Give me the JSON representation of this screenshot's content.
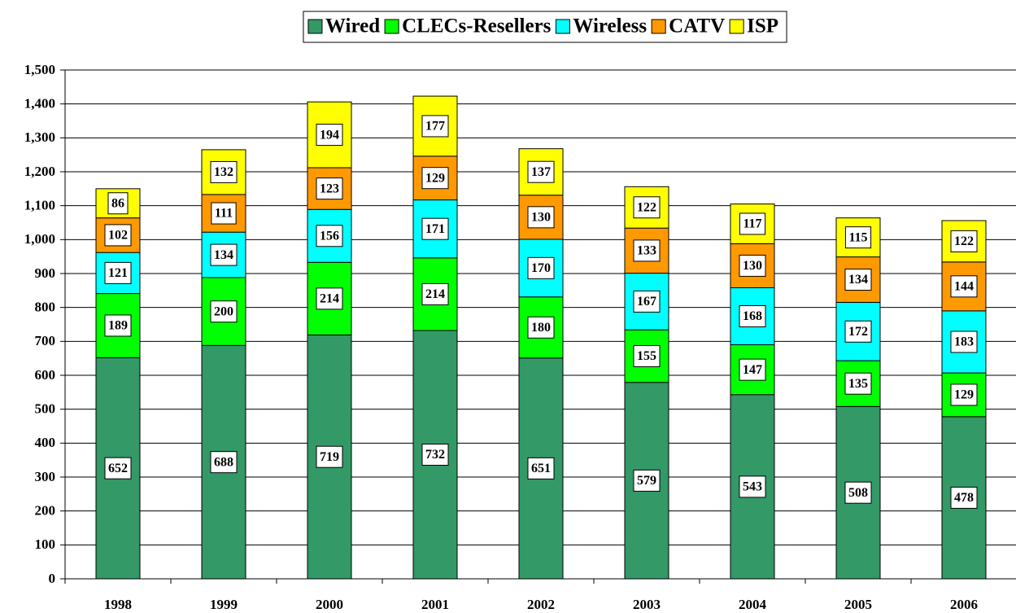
{
  "chart_data": {
    "type": "stacked_bar",
    "categories": [
      "1998",
      "1999",
      "2000",
      "2001",
      "2002",
      "2003",
      "2004",
      "2005",
      "2006"
    ],
    "series": [
      {
        "name": "Wired",
        "color": "#339966",
        "values": [
          652,
          688,
          719,
          732,
          651,
          579,
          543,
          508,
          478
        ]
      },
      {
        "name": "CLECs-Resellers",
        "color": "#00ff00",
        "values": [
          189,
          200,
          214,
          214,
          180,
          155,
          147,
          135,
          129
        ]
      },
      {
        "name": "Wireless",
        "color": "#00ffff",
        "values": [
          121,
          134,
          156,
          171,
          170,
          167,
          168,
          172,
          183
        ]
      },
      {
        "name": "CATV",
        "color": "#ff9900",
        "values": [
          102,
          111,
          123,
          129,
          130,
          133,
          130,
          134,
          144
        ]
      },
      {
        "name": "ISP",
        "color": "#ffff00",
        "values": [
          86,
          132,
          194,
          177,
          137,
          122,
          117,
          115,
          122
        ]
      }
    ],
    "ylim": [
      0,
      1500
    ],
    "yticks": [
      0,
      100,
      200,
      300,
      400,
      500,
      600,
      700,
      800,
      900,
      {
        "value": 1000,
        "label": "1,000"
      },
      {
        "value": 1100,
        "label": "1,100"
      },
      {
        "value": 1200,
        "label": "1,200"
      },
      {
        "value": 1300,
        "label": "1,300"
      },
      {
        "value": 1400,
        "label": "1,400"
      },
      {
        "value": 1500,
        "label": "1,500"
      }
    ],
    "grid": true,
    "legend": "top"
  }
}
